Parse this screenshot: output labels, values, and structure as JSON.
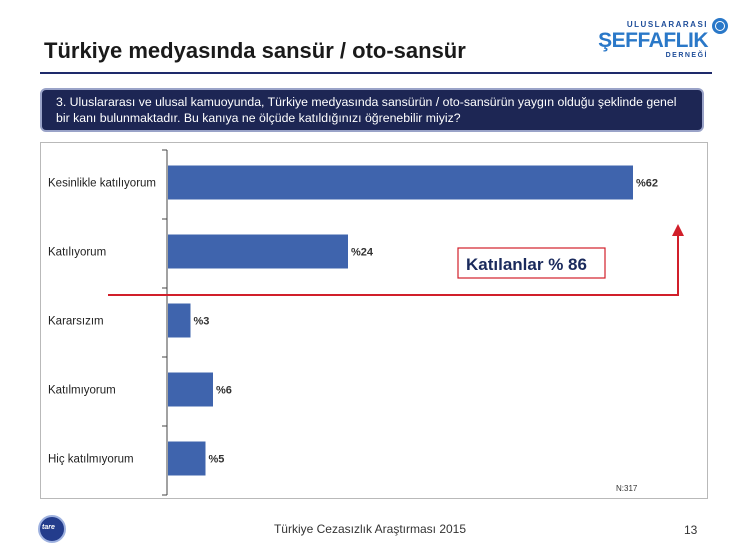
{
  "header": {
    "title": "Türkiye medyasında sansür / oto-sansür",
    "logo": {
      "line1": "ULUSLARARASI",
      "line2": "ŞEFFAFLIK",
      "line3": "DERNEĞİ",
      "icon": "globe-icon"
    }
  },
  "question": "3. Uluslararası ve ulusal kamuoyunda, Türkiye medyasında sansürün / oto-sansürün yaygın olduğu şeklinde genel bir kanı bulunmaktadır. Bu kanıya ne ölçüde katıldığınızı öğrenebilir miyiz?",
  "chart_data": {
    "type": "bar",
    "orientation": "horizontal",
    "categories": [
      "Kesinlikle katılıyorum",
      "Katılıyorum",
      "Kararsızım",
      "Katılmıyorum",
      "Hiç katılmıyorum"
    ],
    "values": [
      62,
      24,
      3,
      6,
      5
    ],
    "value_labels": [
      "%62",
      "%24",
      "%3",
      "%6",
      "%5"
    ],
    "xlim": [
      0,
      65
    ],
    "grid": false,
    "legend": "none",
    "bar_color": "#3f64ad",
    "annotation": {
      "text": "Katılanlar % 86",
      "color": "#d11f2a"
    },
    "sample_note": "N:317"
  },
  "footer": {
    "text": "Türkiye Cezasızlık Araştırması 2015",
    "page": "13",
    "logo_text": "tare"
  }
}
